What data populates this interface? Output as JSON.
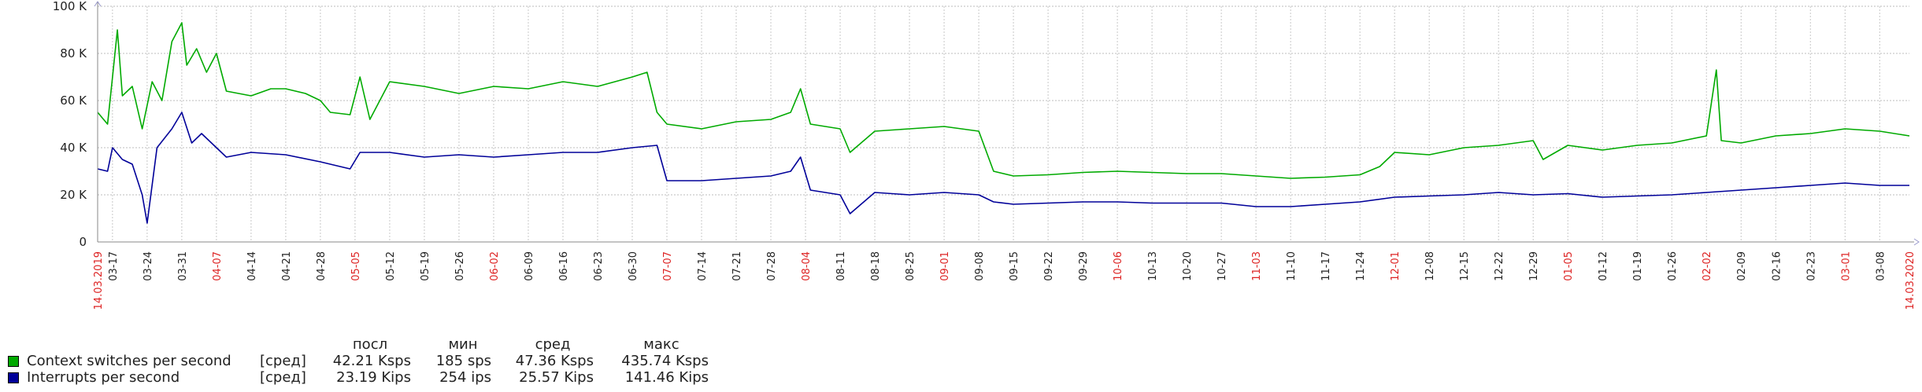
{
  "chart_data": {
    "type": "line",
    "x_start": "14.03.2019",
    "x_end": "14.03.2020",
    "y_ticks": [
      "0",
      "20 K",
      "40 K",
      "60 K",
      "80 K",
      "100 K"
    ],
    "ylim": [
      0,
      100000
    ],
    "grid": true,
    "x_ticks": [
      {
        "label": "14.03.2019",
        "date": "2019-03-14",
        "red": true
      },
      {
        "label": "03-17",
        "date": "2019-03-17",
        "red": false
      },
      {
        "label": "03-24",
        "date": "2019-03-24",
        "red": false
      },
      {
        "label": "03-31",
        "date": "2019-03-31",
        "red": false
      },
      {
        "label": "04-07",
        "date": "2019-04-07",
        "red": true
      },
      {
        "label": "04-14",
        "date": "2019-04-14",
        "red": false
      },
      {
        "label": "04-21",
        "date": "2019-04-21",
        "red": false
      },
      {
        "label": "04-28",
        "date": "2019-04-28",
        "red": false
      },
      {
        "label": "05-05",
        "date": "2019-05-05",
        "red": true
      },
      {
        "label": "05-12",
        "date": "2019-05-12",
        "red": false
      },
      {
        "label": "05-19",
        "date": "2019-05-19",
        "red": false
      },
      {
        "label": "05-26",
        "date": "2019-05-26",
        "red": false
      },
      {
        "label": "06-02",
        "date": "2019-06-02",
        "red": true
      },
      {
        "label": "06-09",
        "date": "2019-06-09",
        "red": false
      },
      {
        "label": "06-16",
        "date": "2019-06-16",
        "red": false
      },
      {
        "label": "06-23",
        "date": "2019-06-23",
        "red": false
      },
      {
        "label": "06-30",
        "date": "2019-06-30",
        "red": false
      },
      {
        "label": "07-07",
        "date": "2019-07-07",
        "red": true
      },
      {
        "label": "07-14",
        "date": "2019-07-14",
        "red": false
      },
      {
        "label": "07-21",
        "date": "2019-07-21",
        "red": false
      },
      {
        "label": "07-28",
        "date": "2019-07-28",
        "red": false
      },
      {
        "label": "08-04",
        "date": "2019-08-04",
        "red": true
      },
      {
        "label": "08-11",
        "date": "2019-08-11",
        "red": false
      },
      {
        "label": "08-18",
        "date": "2019-08-18",
        "red": false
      },
      {
        "label": "08-25",
        "date": "2019-08-25",
        "red": false
      },
      {
        "label": "09-01",
        "date": "2019-09-01",
        "red": true
      },
      {
        "label": "09-08",
        "date": "2019-09-08",
        "red": false
      },
      {
        "label": "09-15",
        "date": "2019-09-15",
        "red": false
      },
      {
        "label": "09-22",
        "date": "2019-09-22",
        "red": false
      },
      {
        "label": "09-29",
        "date": "2019-09-29",
        "red": false
      },
      {
        "label": "10-06",
        "date": "2019-10-06",
        "red": true
      },
      {
        "label": "10-13",
        "date": "2019-10-13",
        "red": false
      },
      {
        "label": "10-20",
        "date": "2019-10-20",
        "red": false
      },
      {
        "label": "10-27",
        "date": "2019-10-27",
        "red": false
      },
      {
        "label": "11-03",
        "date": "2019-11-03",
        "red": true
      },
      {
        "label": "11-10",
        "date": "2019-11-10",
        "red": false
      },
      {
        "label": "11-17",
        "date": "2019-11-17",
        "red": false
      },
      {
        "label": "11-24",
        "date": "2019-11-24",
        "red": false
      },
      {
        "label": "12-01",
        "date": "2019-12-01",
        "red": true
      },
      {
        "label": "12-08",
        "date": "2019-12-08",
        "red": false
      },
      {
        "label": "12-15",
        "date": "2019-12-15",
        "red": false
      },
      {
        "label": "12-22",
        "date": "2019-12-22",
        "red": false
      },
      {
        "label": "12-29",
        "date": "2019-12-29",
        "red": false
      },
      {
        "label": "01-05",
        "date": "2020-01-05",
        "red": true
      },
      {
        "label": "01-12",
        "date": "2020-01-12",
        "red": false
      },
      {
        "label": "01-19",
        "date": "2020-01-19",
        "red": false
      },
      {
        "label": "01-26",
        "date": "2020-01-26",
        "red": false
      },
      {
        "label": "02-02",
        "date": "2020-02-02",
        "red": true
      },
      {
        "label": "02-09",
        "date": "2020-02-09",
        "red": false
      },
      {
        "label": "02-16",
        "date": "2020-02-16",
        "red": false
      },
      {
        "label": "02-23",
        "date": "2020-02-23",
        "red": false
      },
      {
        "label": "03-01",
        "date": "2020-03-01",
        "red": true
      },
      {
        "label": "03-08",
        "date": "2020-03-08",
        "red": false
      },
      {
        "label": "14.03.2020",
        "date": "2020-03-14",
        "red": true
      }
    ],
    "series": [
      {
        "name": "Context switches per second",
        "color": "#00aa00",
        "points": [
          [
            "2019-03-14",
            55000
          ],
          [
            "2019-03-16",
            50000
          ],
          [
            "2019-03-17",
            70000
          ],
          [
            "2019-03-18",
            90000
          ],
          [
            "2019-03-19",
            62000
          ],
          [
            "2019-03-21",
            66000
          ],
          [
            "2019-03-23",
            48000
          ],
          [
            "2019-03-25",
            68000
          ],
          [
            "2019-03-27",
            60000
          ],
          [
            "2019-03-29",
            85000
          ],
          [
            "2019-03-31",
            93000
          ],
          [
            "2019-04-01",
            75000
          ],
          [
            "2019-04-03",
            82000
          ],
          [
            "2019-04-05",
            72000
          ],
          [
            "2019-04-07",
            80000
          ],
          [
            "2019-04-09",
            64000
          ],
          [
            "2019-04-14",
            62000
          ],
          [
            "2019-04-18",
            65000
          ],
          [
            "2019-04-21",
            65000
          ],
          [
            "2019-04-25",
            63000
          ],
          [
            "2019-04-28",
            60000
          ],
          [
            "2019-04-30",
            55000
          ],
          [
            "2019-05-04",
            54000
          ],
          [
            "2019-05-06",
            70000
          ],
          [
            "2019-05-08",
            52000
          ],
          [
            "2019-05-12",
            68000
          ],
          [
            "2019-05-19",
            66000
          ],
          [
            "2019-05-26",
            63000
          ],
          [
            "2019-06-02",
            66000
          ],
          [
            "2019-06-09",
            65000
          ],
          [
            "2019-06-16",
            68000
          ],
          [
            "2019-06-23",
            66000
          ],
          [
            "2019-06-30",
            70000
          ],
          [
            "2019-07-03",
            72000
          ],
          [
            "2019-07-05",
            55000
          ],
          [
            "2019-07-07",
            50000
          ],
          [
            "2019-07-14",
            48000
          ],
          [
            "2019-07-21",
            51000
          ],
          [
            "2019-07-28",
            52000
          ],
          [
            "2019-08-01",
            55000
          ],
          [
            "2019-08-03",
            65000
          ],
          [
            "2019-08-05",
            50000
          ],
          [
            "2019-08-11",
            48000
          ],
          [
            "2019-08-13",
            38000
          ],
          [
            "2019-08-18",
            47000
          ],
          [
            "2019-08-25",
            48000
          ],
          [
            "2019-09-01",
            49000
          ],
          [
            "2019-09-08",
            47000
          ],
          [
            "2019-09-11",
            30000
          ],
          [
            "2019-09-15",
            28000
          ],
          [
            "2019-09-22",
            28500
          ],
          [
            "2019-09-29",
            29500
          ],
          [
            "2019-10-06",
            30000
          ],
          [
            "2019-10-13",
            29500
          ],
          [
            "2019-10-20",
            29000
          ],
          [
            "2019-10-27",
            29000
          ],
          [
            "2019-11-03",
            28000
          ],
          [
            "2019-11-10",
            27000
          ],
          [
            "2019-11-17",
            27500
          ],
          [
            "2019-11-24",
            28500
          ],
          [
            "2019-11-28",
            32000
          ],
          [
            "2019-12-01",
            38000
          ],
          [
            "2019-12-08",
            37000
          ],
          [
            "2019-12-15",
            40000
          ],
          [
            "2019-12-22",
            41000
          ],
          [
            "2019-12-29",
            43000
          ],
          [
            "2019-12-31",
            35000
          ],
          [
            "2020-01-05",
            41000
          ],
          [
            "2020-01-12",
            39000
          ],
          [
            "2020-01-19",
            41000
          ],
          [
            "2020-01-26",
            42000
          ],
          [
            "2020-02-02",
            45000
          ],
          [
            "2020-02-04",
            73000
          ],
          [
            "2020-02-05",
            43000
          ],
          [
            "2020-02-09",
            42000
          ],
          [
            "2020-02-16",
            45000
          ],
          [
            "2020-02-23",
            46000
          ],
          [
            "2020-03-01",
            48000
          ],
          [
            "2020-03-08",
            47000
          ],
          [
            "2020-03-14",
            45000
          ]
        ]
      },
      {
        "name": "Interrupts per second",
        "color": "#000099",
        "points": [
          [
            "2019-03-14",
            31000
          ],
          [
            "2019-03-16",
            30000
          ],
          [
            "2019-03-17",
            40000
          ],
          [
            "2019-03-19",
            35000
          ],
          [
            "2019-03-21",
            33000
          ],
          [
            "2019-03-23",
            20000
          ],
          [
            "2019-03-24",
            8000
          ],
          [
            "2019-03-26",
            40000
          ],
          [
            "2019-03-29",
            48000
          ],
          [
            "2019-03-31",
            55000
          ],
          [
            "2019-04-02",
            42000
          ],
          [
            "2019-04-04",
            46000
          ],
          [
            "2019-04-07",
            40000
          ],
          [
            "2019-04-09",
            36000
          ],
          [
            "2019-04-14",
            38000
          ],
          [
            "2019-04-21",
            37000
          ],
          [
            "2019-04-28",
            34000
          ],
          [
            "2019-05-04",
            31000
          ],
          [
            "2019-05-06",
            38000
          ],
          [
            "2019-05-12",
            38000
          ],
          [
            "2019-05-19",
            36000
          ],
          [
            "2019-05-26",
            37000
          ],
          [
            "2019-06-02",
            36000
          ],
          [
            "2019-06-09",
            37000
          ],
          [
            "2019-06-16",
            38000
          ],
          [
            "2019-06-23",
            38000
          ],
          [
            "2019-06-30",
            40000
          ],
          [
            "2019-07-05",
            41000
          ],
          [
            "2019-07-07",
            26000
          ],
          [
            "2019-07-14",
            26000
          ],
          [
            "2019-07-21",
            27000
          ],
          [
            "2019-07-28",
            28000
          ],
          [
            "2019-08-01",
            30000
          ],
          [
            "2019-08-03",
            36000
          ],
          [
            "2019-08-05",
            22000
          ],
          [
            "2019-08-11",
            20000
          ],
          [
            "2019-08-13",
            12000
          ],
          [
            "2019-08-18",
            21000
          ],
          [
            "2019-08-25",
            20000
          ],
          [
            "2019-09-01",
            21000
          ],
          [
            "2019-09-08",
            20000
          ],
          [
            "2019-09-11",
            17000
          ],
          [
            "2019-09-15",
            16000
          ],
          [
            "2019-09-22",
            16500
          ],
          [
            "2019-09-29",
            17000
          ],
          [
            "2019-10-06",
            17000
          ],
          [
            "2019-10-13",
            16500
          ],
          [
            "2019-10-20",
            16500
          ],
          [
            "2019-10-27",
            16500
          ],
          [
            "2019-11-03",
            15000
          ],
          [
            "2019-11-10",
            15000
          ],
          [
            "2019-11-17",
            16000
          ],
          [
            "2019-11-24",
            17000
          ],
          [
            "2019-12-01",
            19000
          ],
          [
            "2019-12-08",
            19500
          ],
          [
            "2019-12-15",
            20000
          ],
          [
            "2019-12-22",
            21000
          ],
          [
            "2019-12-29",
            20000
          ],
          [
            "2020-01-05",
            20500
          ],
          [
            "2020-01-12",
            19000
          ],
          [
            "2020-01-19",
            19500
          ],
          [
            "2020-01-26",
            20000
          ],
          [
            "2020-02-02",
            21000
          ],
          [
            "2020-02-09",
            22000
          ],
          [
            "2020-02-16",
            23000
          ],
          [
            "2020-02-23",
            24000
          ],
          [
            "2020-03-01",
            25000
          ],
          [
            "2020-03-08",
            24000
          ],
          [
            "2020-03-14",
            24000
          ]
        ]
      }
    ]
  },
  "legend": {
    "headers": {
      "last": "посл",
      "min": "мин",
      "avg": "сред",
      "max": "макс"
    },
    "rows": [
      {
        "name": "Context switches per second",
        "func": "[сред]",
        "last": "42.21 Ksps",
        "min": "185 sps",
        "avg": "47.36 Ksps",
        "max": "435.74 Ksps",
        "color": "#00aa00"
      },
      {
        "name": "Interrupts per second",
        "func": "[сред]",
        "last": "23.19 Kips",
        "min": "254 ips",
        "avg": "25.57 Kips",
        "max": "141.46 Kips",
        "color": "#000099"
      }
    ]
  }
}
